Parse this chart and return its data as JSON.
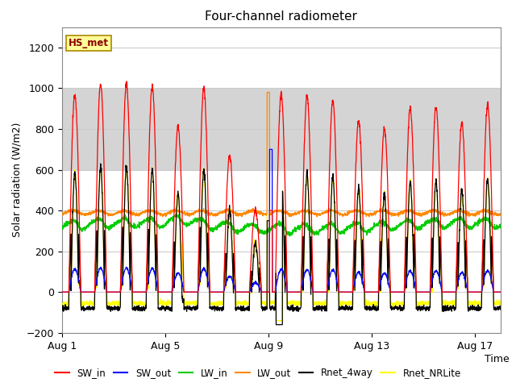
{
  "title": "Four-channel radiometer",
  "xlabel": "Time",
  "ylabel": "Solar radiation (W/m2)",
  "ylim": [
    -200,
    1300
  ],
  "yticks": [
    -200,
    0,
    200,
    400,
    600,
    800,
    1000,
    1200
  ],
  "xtick_labels": [
    "Aug 1",
    "Aug 5",
    "Aug 9",
    "Aug 13",
    "Aug 17"
  ],
  "xtick_positions": [
    0,
    4,
    8,
    12,
    16
  ],
  "n_days": 18,
  "series_colors": {
    "SW_in": "#ff0000",
    "SW_out": "#0000ff",
    "LW_in": "#00cc00",
    "LW_out": "#ff8800",
    "Rnet_4way": "#000000",
    "Rnet_NRLite": "#ffff00"
  },
  "station_label": "HS_met",
  "station_label_color": "#8b0000",
  "station_box_color": "#ffff99",
  "bg_gray_color": "#d4d4d4",
  "bg_gray_ymin": 600,
  "bg_gray_ymax": 1000,
  "grid_color": "#cccccc"
}
